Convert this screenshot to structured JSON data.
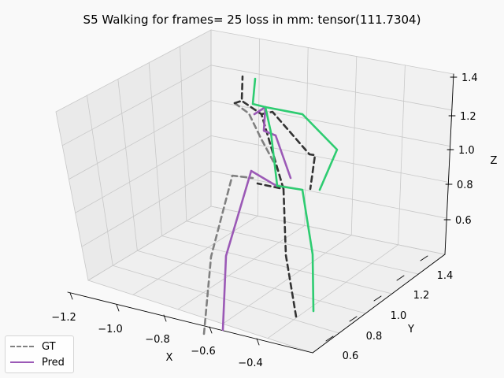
{
  "chart_data": {
    "type": "3d-line",
    "title": "S5 Walking for frames= 25 loss in mm: tensor(111.7304)",
    "xlabel": "X",
    "ylabel": "Y",
    "zlabel": "Z",
    "x_ticks": [
      "−1.2",
      "−1.0",
      "−0.8",
      "−0.6",
      "−0.4"
    ],
    "y_ticks": [
      "0.6",
      "0.8",
      "1.0",
      "1.2",
      "1.4"
    ],
    "z_ticks": [
      "0.6",
      "0.8",
      "1.0",
      "1.2",
      "1.4"
    ],
    "grid": true,
    "legend_position": "bottom-left",
    "series": [
      {
        "name": "GT",
        "legend_color": "#808080",
        "style": "dashed"
      },
      {
        "name": "Pred",
        "legend_color": "#9b59b6",
        "style": "solid"
      }
    ],
    "skeleton_colors": {
      "gt_left": "#808080",
      "gt_right": "#333333",
      "pred_left": "#9b59b6",
      "pred_right": "#2ecc71"
    }
  }
}
